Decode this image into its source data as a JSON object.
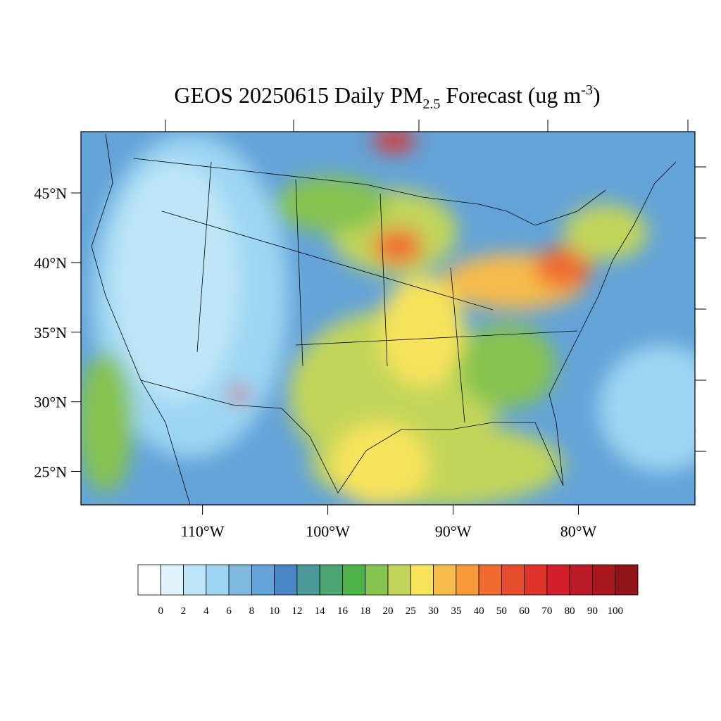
{
  "chart_data": {
    "type": "map",
    "title_parts": [
      "GEOS 20250615 Daily PM",
      "2.5",
      "Forecast (ug m",
      "-3",
      ")"
    ],
    "xlim": [
      -119.7,
      -70.7
    ],
    "ylim": [
      22.6,
      49.4
    ],
    "yticks": [
      {
        "value": 25,
        "label": "25°N"
      },
      {
        "value": 30,
        "label": "30°N"
      },
      {
        "value": 35,
        "label": "35°N"
      },
      {
        "value": 40,
        "label": "40°N"
      },
      {
        "value": 45,
        "label": "45°N"
      }
    ],
    "xticks": [
      {
        "value": -110,
        "label": "110°W"
      },
      {
        "value": -100,
        "label": "100°W"
      },
      {
        "value": -90,
        "label": "90°W"
      },
      {
        "value": -80,
        "label": "80°W"
      }
    ],
    "colorbar": {
      "levels": [
        0,
        2,
        4,
        6,
        8,
        10,
        12,
        14,
        16,
        18,
        20,
        25,
        30,
        35,
        40,
        50,
        60,
        70,
        80,
        90,
        100
      ],
      "colors": [
        "#ffffff",
        "#e0f3fb",
        "#bfe6f8",
        "#9dd6f3",
        "#7fb9e0",
        "#64a3d8",
        "#4a86c6",
        "#4a9a9a",
        "#4aa572",
        "#4db34a",
        "#86c34f",
        "#c2d55a",
        "#f7e35c",
        "#f7bb4c",
        "#f69a3c",
        "#f06b30",
        "#e44c2c",
        "#dd3529",
        "#d21f2b",
        "#bb1b26",
        "#a8191f",
        "#8f1519"
      ]
    }
  }
}
